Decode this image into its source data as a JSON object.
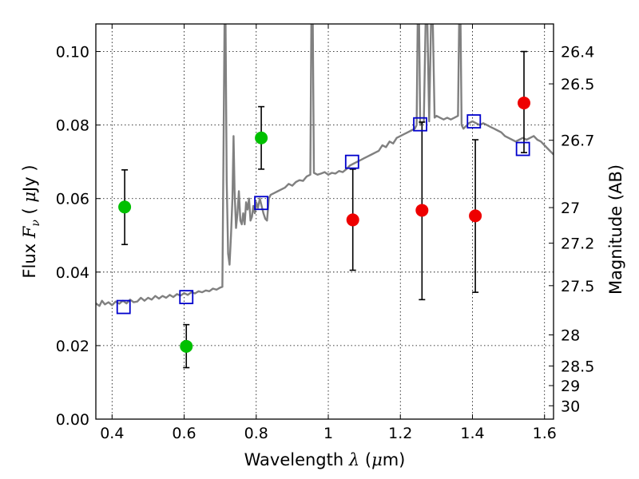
{
  "chart_data": {
    "type": "scatter",
    "title": "",
    "xlabel": "Wavelength",
    "xlabel_symbol": "λ",
    "xlabel_unit_open": " (",
    "xlabel_unit_mu": "μ",
    "xlabel_unit_rest": "m)",
    "ylabel": "Flux",
    "ylabel_symbol": "F",
    "ylabel_subscript": "ν",
    "ylabel_unit_open": " ( ",
    "ylabel_unit_mu": "μ",
    "ylabel_unit_rest": "Jy )",
    "y2label": "Magnitude (AB)",
    "xlim": [
      0.355,
      1.625
    ],
    "ylim": [
      0.0,
      0.1075
    ],
    "grid": true,
    "x_ticks": [
      {
        "value": 0.4,
        "label": "0.4"
      },
      {
        "value": 0.6,
        "label": "0.6"
      },
      {
        "value": 0.8,
        "label": "0.8"
      },
      {
        "value": 1.0,
        "label": "1"
      },
      {
        "value": 1.2,
        "label": "1.2"
      },
      {
        "value": 1.4,
        "label": "1.4"
      },
      {
        "value": 1.6,
        "label": "1.6"
      }
    ],
    "y_ticks": [
      {
        "value": 0.0,
        "label": "0.00"
      },
      {
        "value": 0.02,
        "label": "0.02"
      },
      {
        "value": 0.04,
        "label": "0.04"
      },
      {
        "value": 0.06,
        "label": "0.06"
      },
      {
        "value": 0.08,
        "label": "0.08"
      },
      {
        "value": 0.1,
        "label": "0.10"
      }
    ],
    "mag_ticks": [
      {
        "value": 26.4,
        "label": "26.4"
      },
      {
        "value": 26.5,
        "label": "26.5"
      },
      {
        "value": 26.7,
        "label": "26.7"
      },
      {
        "value": 27.0,
        "label": "27"
      },
      {
        "value": 27.2,
        "label": "27.2"
      },
      {
        "value": 27.5,
        "label": "27.5"
      },
      {
        "value": 28.0,
        "label": "28"
      },
      {
        "value": 28.5,
        "label": "28.5"
      },
      {
        "value": 29.0,
        "label": "29"
      },
      {
        "value": 30.0,
        "label": "30"
      }
    ],
    "colors": {
      "model": "#808080",
      "green": "#00c000",
      "red": "#ee0000",
      "box": "#0000cc",
      "errorbar": "#000000",
      "grid": "#000000"
    },
    "green_points": [
      {
        "x": 0.435,
        "y": 0.0577,
        "ylo": 0.0475,
        "yhi": 0.0678
      },
      {
        "x": 0.606,
        "y": 0.0198,
        "ylo": 0.014,
        "yhi": 0.0257
      },
      {
        "x": 0.814,
        "y": 0.0765,
        "ylo": 0.068,
        "yhi": 0.085
      }
    ],
    "red_points": [
      {
        "x": 1.068,
        "y": 0.0542,
        "ylo": 0.0405,
        "yhi": 0.068
      },
      {
        "x": 1.26,
        "y": 0.0568,
        "ylo": 0.0325,
        "yhi": 0.0808
      },
      {
        "x": 1.408,
        "y": 0.0553,
        "ylo": 0.0345,
        "yhi": 0.076
      },
      {
        "x": 1.543,
        "y": 0.086,
        "ylo": 0.0725,
        "yhi": 0.1
      }
    ],
    "model_photometry": [
      {
        "x": 0.432,
        "y": 0.0305
      },
      {
        "x": 0.606,
        "y": 0.0332
      },
      {
        "x": 0.814,
        "y": 0.0588
      },
      {
        "x": 1.066,
        "y": 0.07
      },
      {
        "x": 1.255,
        "y": 0.0802
      },
      {
        "x": 1.404,
        "y": 0.081
      },
      {
        "x": 1.54,
        "y": 0.0735
      }
    ],
    "model_spectrum": [
      [
        0.355,
        0.0315
      ],
      [
        0.365,
        0.0308
      ],
      [
        0.372,
        0.0322
      ],
      [
        0.38,
        0.0312
      ],
      [
        0.39,
        0.0318
      ],
      [
        0.4,
        0.031
      ],
      [
        0.41,
        0.032
      ],
      [
        0.42,
        0.0314
      ],
      [
        0.43,
        0.0322
      ],
      [
        0.44,
        0.0315
      ],
      [
        0.45,
        0.0325
      ],
      [
        0.46,
        0.0318
      ],
      [
        0.47,
        0.032
      ],
      [
        0.48,
        0.033
      ],
      [
        0.49,
        0.0322
      ],
      [
        0.5,
        0.033
      ],
      [
        0.51,
        0.0325
      ],
      [
        0.52,
        0.0335
      ],
      [
        0.53,
        0.0328
      ],
      [
        0.54,
        0.0335
      ],
      [
        0.55,
        0.033
      ],
      [
        0.56,
        0.0338
      ],
      [
        0.57,
        0.0332
      ],
      [
        0.58,
        0.034
      ],
      [
        0.59,
        0.0336
      ],
      [
        0.6,
        0.0343
      ],
      [
        0.61,
        0.0338
      ],
      [
        0.62,
        0.0345
      ],
      [
        0.63,
        0.0342
      ],
      [
        0.64,
        0.0348
      ],
      [
        0.65,
        0.0345
      ],
      [
        0.66,
        0.035
      ],
      [
        0.67,
        0.0348
      ],
      [
        0.68,
        0.0355
      ],
      [
        0.69,
        0.0352
      ],
      [
        0.7,
        0.0358
      ],
      [
        0.706,
        0.036
      ],
      [
        0.709,
        0.07
      ],
      [
        0.712,
        0.1075
      ],
      [
        0.715,
        0.1075
      ],
      [
        0.718,
        0.065
      ],
      [
        0.722,
        0.045
      ],
      [
        0.726,
        0.042
      ],
      [
        0.73,
        0.05
      ],
      [
        0.734,
        0.06
      ],
      [
        0.737,
        0.077
      ],
      [
        0.74,
        0.062
      ],
      [
        0.744,
        0.052
      ],
      [
        0.748,
        0.056
      ],
      [
        0.752,
        0.062
      ],
      [
        0.756,
        0.054
      ],
      [
        0.76,
        0.053
      ],
      [
        0.764,
        0.056
      ],
      [
        0.768,
        0.053
      ],
      [
        0.772,
        0.059
      ],
      [
        0.776,
        0.057
      ],
      [
        0.78,
        0.06
      ],
      [
        0.784,
        0.054
      ],
      [
        0.788,
        0.055
      ],
      [
        0.792,
        0.058
      ],
      [
        0.796,
        0.056
      ],
      [
        0.8,
        0.059
      ],
      [
        0.805,
        0.0575
      ],
      [
        0.81,
        0.06
      ],
      [
        0.815,
        0.058
      ],
      [
        0.82,
        0.056
      ],
      [
        0.825,
        0.0545
      ],
      [
        0.83,
        0.054
      ],
      [
        0.835,
        0.06
      ],
      [
        0.84,
        0.061
      ],
      [
        0.85,
        0.0615
      ],
      [
        0.86,
        0.062
      ],
      [
        0.87,
        0.0625
      ],
      [
        0.88,
        0.063
      ],
      [
        0.89,
        0.064
      ],
      [
        0.9,
        0.0635
      ],
      [
        0.91,
        0.0645
      ],
      [
        0.92,
        0.065
      ],
      [
        0.93,
        0.0648
      ],
      [
        0.94,
        0.066
      ],
      [
        0.95,
        0.0665
      ],
      [
        0.953,
        0.1075
      ],
      [
        0.957,
        0.1075
      ],
      [
        0.96,
        0.067
      ],
      [
        0.97,
        0.0665
      ],
      [
        0.98,
        0.0668
      ],
      [
        0.99,
        0.0672
      ],
      [
        1.0,
        0.0665
      ],
      [
        1.01,
        0.067
      ],
      [
        1.02,
        0.0668
      ],
      [
        1.03,
        0.0675
      ],
      [
        1.04,
        0.0672
      ],
      [
        1.05,
        0.068
      ],
      [
        1.06,
        0.069
      ],
      [
        1.07,
        0.0695
      ],
      [
        1.08,
        0.07
      ],
      [
        1.09,
        0.0705
      ],
      [
        1.1,
        0.071
      ],
      [
        1.11,
        0.0715
      ],
      [
        1.12,
        0.072
      ],
      [
        1.13,
        0.0725
      ],
      [
        1.14,
        0.073
      ],
      [
        1.15,
        0.0745
      ],
      [
        1.16,
        0.074
      ],
      [
        1.17,
        0.0755
      ],
      [
        1.18,
        0.075
      ],
      [
        1.19,
        0.0765
      ],
      [
        1.2,
        0.077
      ],
      [
        1.21,
        0.0775
      ],
      [
        1.22,
        0.078
      ],
      [
        1.23,
        0.0785
      ],
      [
        1.24,
        0.079
      ],
      [
        1.245,
        0.08
      ],
      [
        1.248,
        0.1075
      ],
      [
        1.252,
        0.1075
      ],
      [
        1.255,
        0.08
      ],
      [
        1.26,
        0.0805
      ],
      [
        1.265,
        0.081
      ],
      [
        1.27,
        0.1075
      ],
      [
        1.275,
        0.1075
      ],
      [
        1.28,
        0.081
      ],
      [
        1.285,
        0.1075
      ],
      [
        1.29,
        0.1075
      ],
      [
        1.295,
        0.082
      ],
      [
        1.3,
        0.0825
      ],
      [
        1.31,
        0.082
      ],
      [
        1.32,
        0.0815
      ],
      [
        1.33,
        0.082
      ],
      [
        1.34,
        0.0815
      ],
      [
        1.35,
        0.082
      ],
      [
        1.36,
        0.0825
      ],
      [
        1.363,
        0.1075
      ],
      [
        1.367,
        0.1075
      ],
      [
        1.37,
        0.08
      ],
      [
        1.375,
        0.079
      ],
      [
        1.38,
        0.0795
      ],
      [
        1.39,
        0.0805
      ],
      [
        1.4,
        0.081
      ],
      [
        1.41,
        0.0805
      ],
      [
        1.42,
        0.08
      ],
      [
        1.43,
        0.0805
      ],
      [
        1.44,
        0.08
      ],
      [
        1.45,
        0.0795
      ],
      [
        1.46,
        0.079
      ],
      [
        1.47,
        0.0785
      ],
      [
        1.48,
        0.078
      ],
      [
        1.49,
        0.077
      ],
      [
        1.5,
        0.0765
      ],
      [
        1.51,
        0.076
      ],
      [
        1.52,
        0.0755
      ],
      [
        1.53,
        0.076
      ],
      [
        1.54,
        0.0765
      ],
      [
        1.55,
        0.076
      ],
      [
        1.56,
        0.0765
      ],
      [
        1.57,
        0.077
      ],
      [
        1.58,
        0.076
      ],
      [
        1.59,
        0.0755
      ],
      [
        1.6,
        0.0745
      ],
      [
        1.61,
        0.0735
      ],
      [
        1.62,
        0.0725
      ],
      [
        1.625,
        0.072
      ]
    ]
  }
}
